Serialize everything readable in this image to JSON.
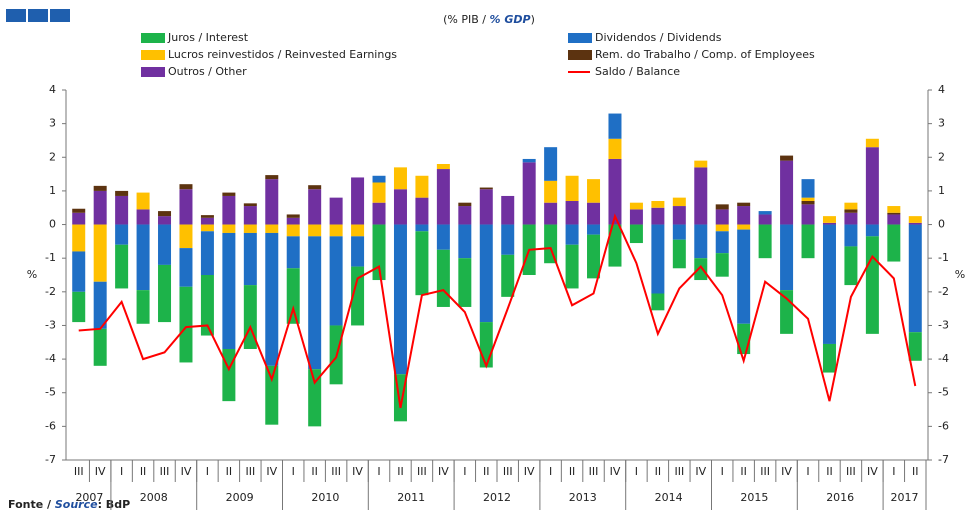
{
  "chart_data": {
    "type": "bar",
    "title": [
      "(% PIB / ",
      "% GDP",
      ")"
    ],
    "source": [
      "Fonte / ",
      "Source",
      ": BdP"
    ],
    "ylabel": "%",
    "y2label": "%",
    "categories": [
      "III",
      "IV",
      "I",
      "II",
      "III",
      "IV",
      "I",
      "II",
      "III",
      "IV",
      "I",
      "II",
      "III",
      "IV",
      "I",
      "II",
      "III",
      "IV",
      "I",
      "II",
      "III",
      "IV",
      "I",
      "II",
      "III",
      "IV",
      "I",
      "II",
      "III",
      "IV",
      "I",
      "II",
      "III",
      "IV",
      "I",
      "II",
      "III",
      "IV",
      "I",
      "II"
    ],
    "x_groups": [
      {
        "label": "2007",
        "count": 2
      },
      {
        "label": "2008",
        "count": 4
      },
      {
        "label": "2009",
        "count": 4
      },
      {
        "label": "2010",
        "count": 4
      },
      {
        "label": "2011",
        "count": 4
      },
      {
        "label": "2012",
        "count": 4
      },
      {
        "label": "2013",
        "count": 4
      },
      {
        "label": "2014",
        "count": 4
      },
      {
        "label": "2015",
        "count": 4
      },
      {
        "label": "2016",
        "count": 4
      },
      {
        "label": "2017",
        "count": 2
      }
    ],
    "series": [
      {
        "name": "Juros / Interest",
        "color": "#1db34a",
        "values": [
          -0.9,
          -1.1,
          -1.3,
          -1.0,
          -1.7,
          -2.25,
          -1.8,
          -1.55,
          -1.9,
          -1.75,
          -1.65,
          -1.7,
          -1.75,
          -1.75,
          -1.65,
          -1.4,
          -1.9,
          -1.7,
          -1.45,
          -1.35,
          -1.25,
          -1.5,
          -1.15,
          -1.3,
          -1.3,
          -1.25,
          -0.55,
          -0.5,
          -0.85,
          -0.65,
          -0.7,
          -0.9,
          -1.0,
          -1.3,
          -1.0,
          -0.85,
          -1.15,
          -2.9,
          -1.1,
          -0.85
        ]
      },
      {
        "name": "Dividendos / Dividends",
        "color": "#1f6fc5",
        "values": [
          -1.2,
          -1.4,
          -0.6,
          -1.95,
          -1.2,
          -1.15,
          -1.3,
          -3.45,
          -1.55,
          -3.95,
          -0.95,
          -3.95,
          -2.65,
          -0.9,
          0.2,
          -4.45,
          -0.2,
          -0.75,
          -1.0,
          -2.9,
          -0.9,
          0.1,
          1.0,
          -0.6,
          -0.3,
          0.75,
          0,
          -2.05,
          -0.45,
          -1.0,
          -0.65,
          -2.8,
          0.1,
          -1.95,
          0.55,
          -3.55,
          -0.65,
          -0.35,
          0,
          -3.2
        ]
      },
      {
        "name": "Lucros reinvestidos / Reinvested Earnings",
        "color": "#ffc000",
        "values": [
          -0.8,
          -1.7,
          0,
          0.5,
          0,
          -0.7,
          -0.2,
          -0.25,
          -0.25,
          -0.25,
          -0.35,
          -0.35,
          -0.35,
          -0.35,
          0.6,
          0.65,
          0.65,
          0.15,
          0,
          0,
          0,
          0,
          0.65,
          0.75,
          0.7,
          0.6,
          0.2,
          0.2,
          0.25,
          0.2,
          -0.2,
          -0.15,
          0,
          0,
          0.1,
          0.2,
          0.2,
          0.25,
          0.2,
          0.2
        ]
      },
      {
        "name": "Rem. do Trabalho / Comp. of Employees",
        "color": "#5c3310",
        "values": [
          0.12,
          0.15,
          0.15,
          0,
          0.15,
          0.15,
          0.08,
          0.1,
          0.08,
          0.12,
          0.1,
          0.12,
          0,
          0,
          0,
          0,
          0,
          0,
          0.1,
          0.05,
          0,
          0,
          0,
          0,
          0,
          0,
          0,
          0,
          0,
          0,
          0.15,
          0.1,
          0,
          0.15,
          0.1,
          0,
          0.1,
          0,
          0.05,
          0
        ]
      },
      {
        "name": "Outros / Other",
        "color": "#7030a0",
        "values": [
          0.35,
          1.0,
          0.85,
          0.45,
          0.25,
          1.05,
          0.2,
          0.85,
          0.55,
          1.35,
          0.2,
          1.05,
          0.8,
          1.4,
          0.65,
          1.05,
          0.8,
          1.65,
          0.55,
          1.05,
          0.85,
          1.85,
          0.65,
          0.7,
          0.65,
          1.95,
          0.45,
          0.5,
          0.55,
          1.7,
          0.45,
          0.55,
          0.3,
          1.9,
          0.6,
          0.05,
          0.35,
          2.3,
          0.3,
          0.05
        ]
      },
      {
        "name": "Saldo / Balance",
        "color": "#ff0000",
        "type": "line",
        "values": [
          -3.15,
          -3.1,
          -2.3,
          -4.0,
          -3.8,
          -3.05,
          -3.0,
          -4.3,
          -3.05,
          -4.6,
          -2.5,
          -4.7,
          -3.95,
          -1.6,
          -1.25,
          -5.45,
          -2.1,
          -1.95,
          -2.6,
          -4.2,
          -2.5,
          -0.75,
          -0.7,
          -2.4,
          -2.05,
          0.25,
          -1.15,
          -3.25,
          -1.9,
          -1.25,
          -2.1,
          -4.05,
          -1.7,
          -2.2,
          -2.8,
          -5.25,
          -2.15,
          -0.95,
          -1.6,
          -4.8
        ]
      }
    ],
    "ylim": [
      -7,
      4
    ],
    "yticks": [
      -7,
      -6,
      -5,
      -4,
      -3,
      -2,
      -1,
      0,
      1,
      2,
      3,
      4
    ],
    "y2lim": [
      -7,
      4
    ],
    "y2ticks": [
      -7,
      -6,
      -5,
      -4,
      -3,
      -2,
      -1,
      0,
      1,
      2,
      3,
      4
    ],
    "grid": false
  }
}
